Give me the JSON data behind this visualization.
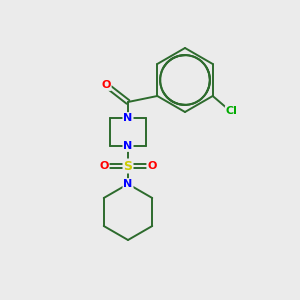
{
  "background_color": "#ebebeb",
  "bond_color": "#2d6b2d",
  "atom_colors": {
    "N": "#0000ff",
    "O": "#ff0000",
    "S": "#cccc00",
    "Cl": "#00aa00",
    "C": "#2d6b2d"
  },
  "figsize": [
    3.0,
    3.0
  ],
  "dpi": 100
}
